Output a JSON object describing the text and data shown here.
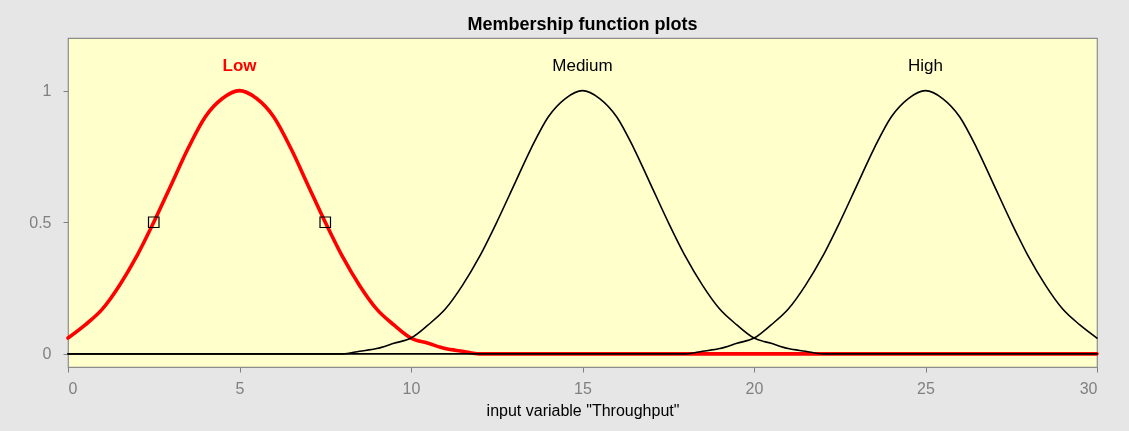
{
  "chart_data": {
    "type": "line",
    "title": "Membership function plots",
    "xlabel": "input variable \"Throughput\"",
    "x": [
      0,
      0.5,
      1,
      1.5,
      2,
      2.5,
      3,
      3.5,
      4,
      4.5,
      5,
      5.5,
      6,
      6.5,
      7,
      7.5,
      8,
      8.5,
      9,
      9.5,
      10,
      10.5,
      11,
      11.5,
      12,
      12.5,
      13,
      13.5,
      14,
      14.5,
      15,
      15.5,
      16,
      16.5,
      17,
      17.5,
      18,
      18.5,
      19,
      19.5,
      20,
      20.5,
      21,
      21.5,
      22,
      22.5,
      23,
      23.5,
      24,
      24.5,
      25,
      25.5,
      26,
      26.5,
      27,
      27.5,
      28,
      28.5,
      29,
      29.5,
      30
    ],
    "series": [
      {
        "name": "Low",
        "color": "#ff0000",
        "values": [
          0.06,
          0.11,
          0.17,
          0.26,
          0.37,
          0.5,
          0.64,
          0.78,
          0.9,
          0.97,
          1,
          0.97,
          0.9,
          0.78,
          0.64,
          0.5,
          0.37,
          0.26,
          0.17,
          0.11,
          0.06,
          0.04,
          0.02,
          0.01,
          0,
          0,
          0,
          0,
          0,
          0,
          0,
          0,
          0,
          0,
          0,
          0,
          0,
          0,
          0,
          0,
          0,
          0,
          0,
          0,
          0,
          0,
          0,
          0,
          0,
          0,
          0,
          0,
          0,
          0,
          0,
          0,
          0,
          0,
          0,
          0,
          0
        ]
      },
      {
        "name": "Medium",
        "color": "#000000",
        "values": [
          0,
          0,
          0,
          0,
          0,
          0,
          0,
          0,
          0,
          0,
          0,
          0,
          0,
          0,
          0,
          0,
          0,
          0.01,
          0.02,
          0.04,
          0.06,
          0.11,
          0.17,
          0.26,
          0.37,
          0.5,
          0.64,
          0.78,
          0.9,
          0.97,
          1,
          0.97,
          0.9,
          0.78,
          0.64,
          0.5,
          0.37,
          0.26,
          0.17,
          0.11,
          0.06,
          0.04,
          0.02,
          0.01,
          0,
          0,
          0,
          0,
          0,
          0,
          0,
          0,
          0,
          0,
          0,
          0,
          0,
          0,
          0,
          0,
          0
        ]
      },
      {
        "name": "High",
        "color": "#000000",
        "values": [
          0,
          0,
          0,
          0,
          0,
          0,
          0,
          0,
          0,
          0,
          0,
          0,
          0,
          0,
          0,
          0,
          0,
          0,
          0,
          0,
          0,
          0,
          0,
          0,
          0,
          0,
          0,
          0,
          0,
          0,
          0,
          0,
          0,
          0,
          0,
          0,
          0,
          0.01,
          0.02,
          0.04,
          0.06,
          0.11,
          0.17,
          0.26,
          0.37,
          0.5,
          0.64,
          0.78,
          0.9,
          0.97,
          1,
          0.97,
          0.9,
          0.78,
          0.64,
          0.5,
          0.37,
          0.26,
          0.17,
          0.11,
          0.06
        ]
      },
      {
        "type": "scatter",
        "marker": "square",
        "color": "#000000",
        "x": [
          2.5,
          7.5
        ],
        "values": [
          0.5,
          0.5
        ]
      }
    ],
    "xlim": [
      0,
      30
    ],
    "ylim": [
      -0.05,
      1.2
    ],
    "xticks": [
      0,
      5,
      10,
      15,
      20,
      25,
      30
    ],
    "yticks": [
      0,
      0.5,
      1
    ],
    "grid": false,
    "legend": false,
    "marker": "none",
    "line_style": "solid"
  }
}
